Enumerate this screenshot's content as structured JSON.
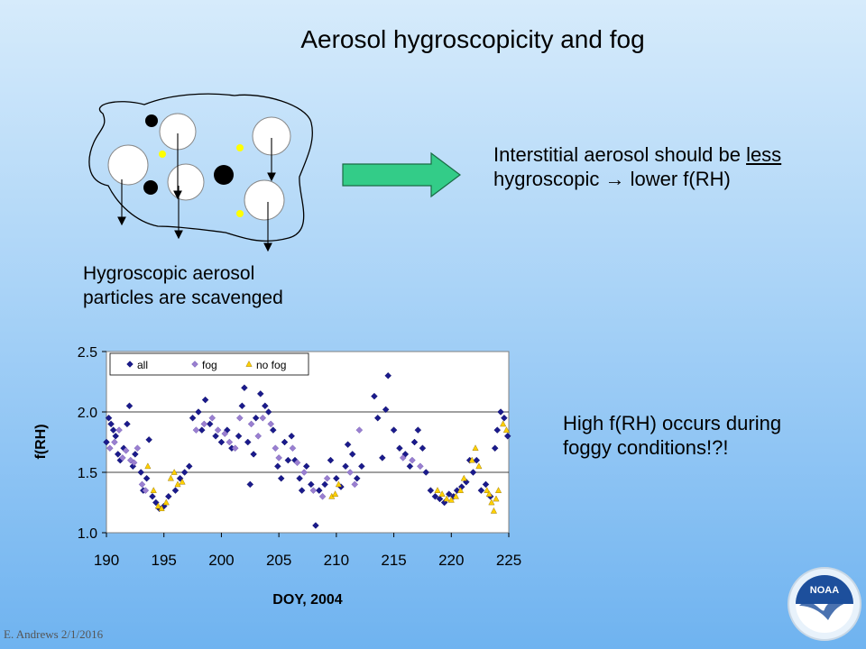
{
  "slide": {
    "title": "Aerosol hygroscopicity and fog",
    "interstitial_line1_a": "Interstitial aerosol should be ",
    "interstitial_line1_b": "less",
    "interstitial_line2": "hygroscopic → lower f(RH)",
    "hygroscopic_line1": "Hygroscopic aerosol",
    "hygroscopic_line2": "particles are scavenged",
    "high_frh_line1": "High f(RH) occurs during",
    "high_frh_line2": "foggy conditions!?!",
    "footer": "E. Andrews   2/1/2016",
    "logo_text": "NOAA",
    "colors": {
      "arrow_fill": "#33cc88",
      "drop_fill": "#ffffff",
      "black_particle": "#000000",
      "yellow_particle": "#ffff00"
    }
  },
  "chart_data": {
    "type": "scatter",
    "title": "",
    "xlabel": "DOY, 2004",
    "ylabel": "f(RH)",
    "xlim": [
      190,
      225
    ],
    "ylim": [
      1.0,
      2.5
    ],
    "xticks": [
      "190",
      "195",
      "200",
      "205",
      "210",
      "215",
      "220",
      "225"
    ],
    "yticks": [
      "1.0",
      "1.5",
      "2.0",
      "2.5"
    ],
    "grid": "horizontal",
    "legend_position": "top-left inside",
    "colors": {
      "all": "#1a1a8c",
      "fog": "#9a7fd0",
      "no_fog": "#ffd000"
    },
    "series": [
      {
        "name": "all",
        "points": [
          [
            190.0,
            1.75
          ],
          [
            190.2,
            1.95
          ],
          [
            190.4,
            1.9
          ],
          [
            190.6,
            1.85
          ],
          [
            190.8,
            1.8
          ],
          [
            191.0,
            1.65
          ],
          [
            191.2,
            1.6
          ],
          [
            191.5,
            1.7
          ],
          [
            191.8,
            1.9
          ],
          [
            192.0,
            2.05
          ],
          [
            192.3,
            1.55
          ],
          [
            192.5,
            1.65
          ],
          [
            193.0,
            1.5
          ],
          [
            193.2,
            1.35
          ],
          [
            193.5,
            1.45
          ],
          [
            193.7,
            1.77
          ],
          [
            194.0,
            1.3
          ],
          [
            194.3,
            1.25
          ],
          [
            194.6,
            1.2
          ],
          [
            195.0,
            1.22
          ],
          [
            195.4,
            1.3
          ],
          [
            196.0,
            1.35
          ],
          [
            196.4,
            1.45
          ],
          [
            196.8,
            1.5
          ],
          [
            197.2,
            1.55
          ],
          [
            197.5,
            1.95
          ],
          [
            198.0,
            2.0
          ],
          [
            198.3,
            1.85
          ],
          [
            198.6,
            2.1
          ],
          [
            199.0,
            1.9
          ],
          [
            199.5,
            1.8
          ],
          [
            200.0,
            1.75
          ],
          [
            200.5,
            1.85
          ],
          [
            200.9,
            1.7
          ],
          [
            201.5,
            1.8
          ],
          [
            201.8,
            2.05
          ],
          [
            202.0,
            2.2
          ],
          [
            202.3,
            1.75
          ],
          [
            202.5,
            1.4
          ],
          [
            202.8,
            1.65
          ],
          [
            203.0,
            1.95
          ],
          [
            203.4,
            2.15
          ],
          [
            203.8,
            2.05
          ],
          [
            204.1,
            2.0
          ],
          [
            204.5,
            1.85
          ],
          [
            204.9,
            1.55
          ],
          [
            205.2,
            1.45
          ],
          [
            205.5,
            1.75
          ],
          [
            205.8,
            1.6
          ],
          [
            206.1,
            1.8
          ],
          [
            206.4,
            1.6
          ],
          [
            206.8,
            1.45
          ],
          [
            207.0,
            1.35
          ],
          [
            207.4,
            1.55
          ],
          [
            207.8,
            1.4
          ],
          [
            208.2,
            1.06
          ],
          [
            208.5,
            1.35
          ],
          [
            209.0,
            1.4
          ],
          [
            209.5,
            1.6
          ],
          [
            210.0,
            1.45
          ],
          [
            210.4,
            1.38
          ],
          [
            210.8,
            1.55
          ],
          [
            211.0,
            1.73
          ],
          [
            211.4,
            1.65
          ],
          [
            211.8,
            1.45
          ],
          [
            212.2,
            1.55
          ],
          [
            213.3,
            2.13
          ],
          [
            213.6,
            1.95
          ],
          [
            214.0,
            1.62
          ],
          [
            214.3,
            2.02
          ],
          [
            214.5,
            2.3
          ],
          [
            215.0,
            1.85
          ],
          [
            215.5,
            1.7
          ],
          [
            216.0,
            1.65
          ],
          [
            216.4,
            1.55
          ],
          [
            216.8,
            1.75
          ],
          [
            217.1,
            1.85
          ],
          [
            217.5,
            1.7
          ],
          [
            217.8,
            1.5
          ],
          [
            218.2,
            1.35
          ],
          [
            218.6,
            1.3
          ],
          [
            219.0,
            1.28
          ],
          [
            219.4,
            1.25
          ],
          [
            219.8,
            1.32
          ],
          [
            220.2,
            1.3
          ],
          [
            220.5,
            1.35
          ],
          [
            220.9,
            1.38
          ],
          [
            221.3,
            1.42
          ],
          [
            221.6,
            1.6
          ],
          [
            221.9,
            1.5
          ],
          [
            222.2,
            1.6
          ],
          [
            222.6,
            1.35
          ],
          [
            223.0,
            1.4
          ],
          [
            223.4,
            1.3
          ],
          [
            223.8,
            1.7
          ],
          [
            224.0,
            1.85
          ],
          [
            224.3,
            2.0
          ],
          [
            224.6,
            1.95
          ],
          [
            224.9,
            1.8
          ]
        ]
      },
      {
        "name": "fog",
        "points": [
          [
            190.3,
            1.7
          ],
          [
            190.7,
            1.75
          ],
          [
            191.1,
            1.85
          ],
          [
            191.4,
            1.62
          ],
          [
            191.7,
            1.68
          ],
          [
            192.1,
            1.6
          ],
          [
            192.4,
            1.58
          ],
          [
            192.7,
            1.7
          ],
          [
            193.1,
            1.4
          ],
          [
            193.4,
            1.35
          ],
          [
            197.8,
            1.85
          ],
          [
            198.5,
            1.9
          ],
          [
            199.2,
            1.95
          ],
          [
            199.7,
            1.85
          ],
          [
            200.3,
            1.82
          ],
          [
            200.7,
            1.75
          ],
          [
            201.2,
            1.7
          ],
          [
            201.6,
            1.95
          ],
          [
            202.6,
            1.9
          ],
          [
            203.2,
            1.8
          ],
          [
            203.6,
            1.95
          ],
          [
            204.3,
            1.9
          ],
          [
            204.7,
            1.7
          ],
          [
            205.0,
            1.62
          ],
          [
            206.2,
            1.7
          ],
          [
            206.6,
            1.58
          ],
          [
            207.2,
            1.5
          ],
          [
            208.0,
            1.35
          ],
          [
            208.8,
            1.3
          ],
          [
            209.2,
            1.45
          ],
          [
            211.2,
            1.5
          ],
          [
            211.6,
            1.4
          ],
          [
            212.0,
            1.85
          ],
          [
            215.8,
            1.62
          ],
          [
            216.6,
            1.6
          ],
          [
            217.3,
            1.55
          ]
        ]
      },
      {
        "name": "no fog",
        "points": [
          [
            193.6,
            1.55
          ],
          [
            194.1,
            1.35
          ],
          [
            194.5,
            1.22
          ],
          [
            194.8,
            1.2
          ],
          [
            195.2,
            1.25
          ],
          [
            195.6,
            1.45
          ],
          [
            195.9,
            1.5
          ],
          [
            196.2,
            1.4
          ],
          [
            196.6,
            1.42
          ],
          [
            209.6,
            1.3
          ],
          [
            209.9,
            1.32
          ],
          [
            210.2,
            1.4
          ],
          [
            218.8,
            1.35
          ],
          [
            219.2,
            1.32
          ],
          [
            219.6,
            1.28
          ],
          [
            220.0,
            1.27
          ],
          [
            220.4,
            1.3
          ],
          [
            220.8,
            1.35
          ],
          [
            221.1,
            1.45
          ],
          [
            221.8,
            1.6
          ],
          [
            222.1,
            1.7
          ],
          [
            222.4,
            1.55
          ],
          [
            223.1,
            1.35
          ],
          [
            223.3,
            1.32
          ],
          [
            223.5,
            1.25
          ],
          [
            223.7,
            1.18
          ],
          [
            223.9,
            1.28
          ],
          [
            224.1,
            1.35
          ],
          [
            224.5,
            1.9
          ],
          [
            224.8,
            1.85
          ]
        ]
      }
    ]
  }
}
